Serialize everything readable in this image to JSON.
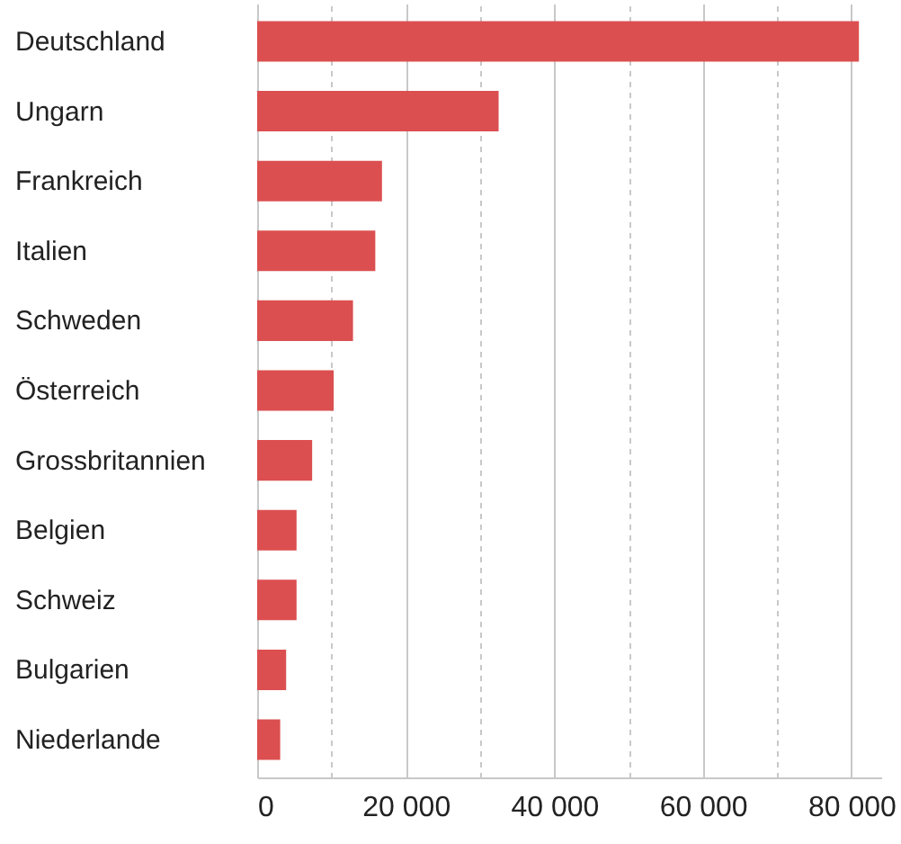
{
  "chart_data": {
    "type": "bar",
    "orientation": "horizontal",
    "categories": [
      "Deutschland",
      "Ungarn",
      "Frankreich",
      "Italien",
      "Schweden",
      "Österreich",
      "Grossbritannien",
      "Belgien",
      "Schweiz",
      "Bulgarien",
      "Niederlande"
    ],
    "values": [
      81000,
      32500,
      16800,
      15900,
      12900,
      10300,
      7400,
      5300,
      5300,
      3900,
      3100
    ],
    "color": "#dc4f50",
    "xlim": [
      0,
      84000
    ],
    "xticks": [
      0,
      {
        "value": 10000,
        "label": null
      },
      {
        "value": 20000,
        "label": "20 000"
      },
      {
        "value": 30000,
        "label": null
      },
      {
        "value": 40000,
        "label": "40 000"
      },
      {
        "value": 50000,
        "label": null
      },
      {
        "value": 60000,
        "label": "60 000"
      },
      {
        "value": 70000,
        "label": null
      },
      {
        "value": 80000,
        "label": "80 000"
      }
    ],
    "grid": "x"
  }
}
